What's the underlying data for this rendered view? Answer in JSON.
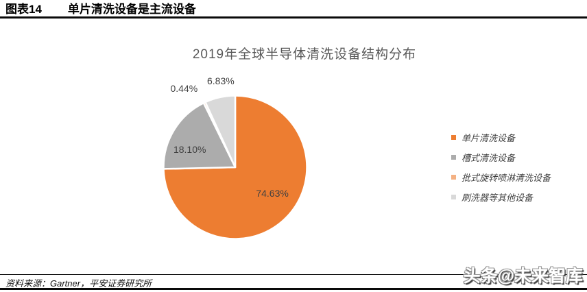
{
  "header": {
    "figure_label": "图表14",
    "title": "单片清洗设备是主流设备"
  },
  "chart_data": {
    "type": "pie",
    "title": "2019年全球半导体清洗设备结构分布",
    "categories": [
      "单片清洗设备",
      "槽式清洗设备",
      "批式旋转喷淋清洗设备",
      "刷洗器等其他设备"
    ],
    "values": [
      74.63,
      18.1,
      0.44,
      6.83
    ],
    "labels": [
      "74.63%",
      "18.10%",
      "0.44%",
      "6.83%"
    ],
    "unit": "%",
    "colors": [
      "#ED7D31",
      "#ACACAC",
      "#F4B183",
      "#D9D9D9"
    ],
    "slice_border_color": "#FFFFFF",
    "start_angle_deg": 0,
    "direction": "clockwise",
    "legend_position": "right",
    "label_color": "#404040",
    "title_color": "#595959"
  },
  "footer": {
    "source": "资料来源：Gartner，平安证券研究所"
  },
  "watermark": {
    "text": "头条@未来智库"
  }
}
